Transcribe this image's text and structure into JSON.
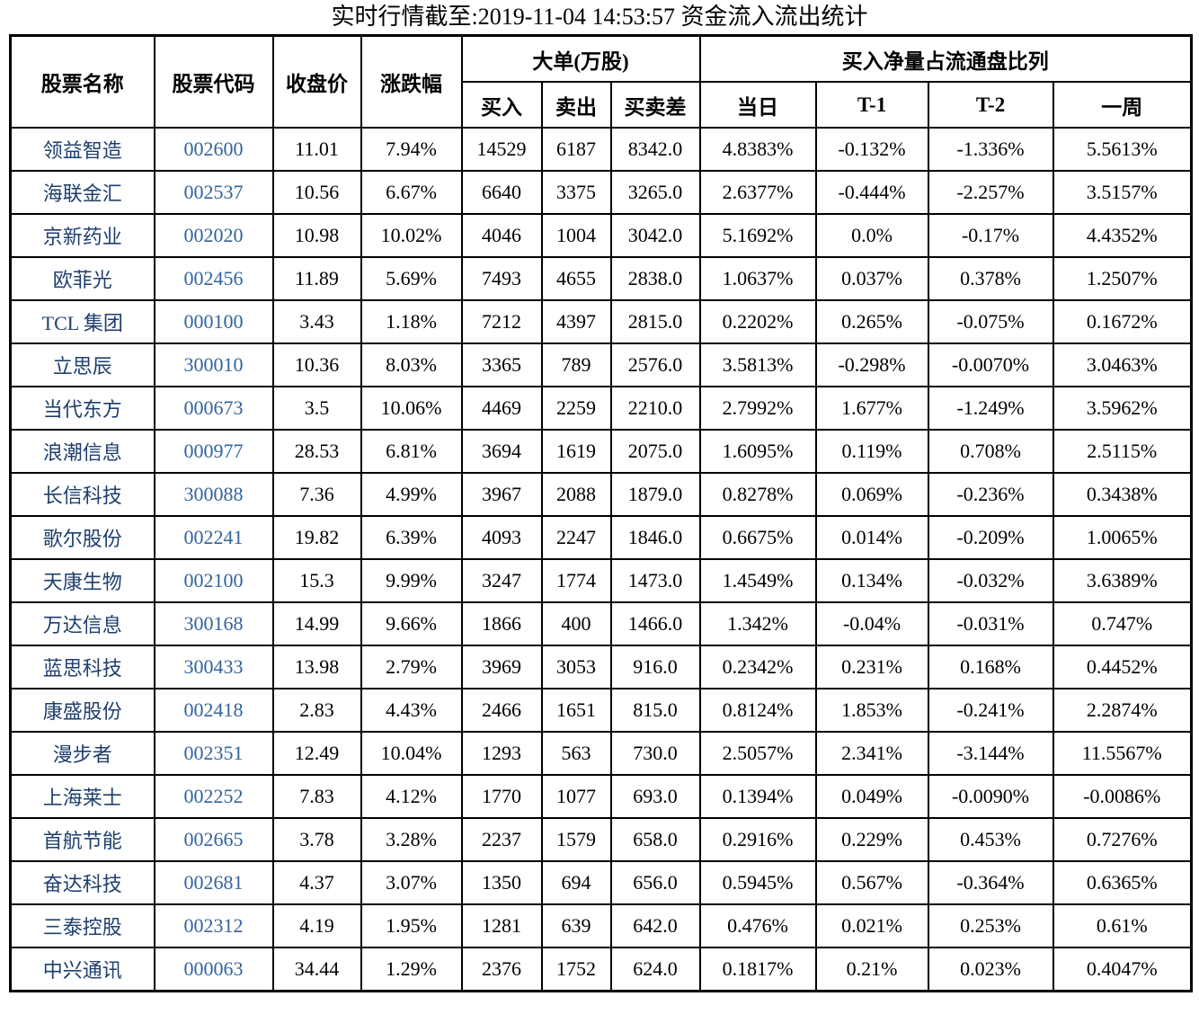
{
  "title": "实时行情截至:2019-11-04 14:53:57 资金流入流出统计",
  "colors": {
    "stock_name_text": "#1e3f6e",
    "stock_code_text": "#33639c",
    "border": "#000000",
    "data_text": "#000000",
    "background": "#ffffff"
  },
  "table": {
    "headers": {
      "stock_name": "股票名称",
      "stock_code": "股票代码",
      "close_price": "收盘价",
      "change_pct": "涨跌幅",
      "large_order_group": "大单(万股)",
      "buy": "买入",
      "sell": "卖出",
      "diff": "买卖差",
      "net_ratio_group": "买入净量占流通盘比列",
      "day": "当日",
      "t1": "T-1",
      "t2": "T-2",
      "week": "一周"
    },
    "rows": [
      {
        "name": "领益智造",
        "code": "002600",
        "close": "11.01",
        "change": "7.94%",
        "buy": "14529",
        "sell": "6187",
        "diff": "8342.0",
        "day": "4.8383%",
        "t1": "-0.132%",
        "t2": "-1.336%",
        "week": "5.5613%"
      },
      {
        "name": "海联金汇",
        "code": "002537",
        "close": "10.56",
        "change": "6.67%",
        "buy": "6640",
        "sell": "3375",
        "diff": "3265.0",
        "day": "2.6377%",
        "t1": "-0.444%",
        "t2": "-2.257%",
        "week": "3.5157%"
      },
      {
        "name": "京新药业",
        "code": "002020",
        "close": "10.98",
        "change": "10.02%",
        "buy": "4046",
        "sell": "1004",
        "diff": "3042.0",
        "day": "5.1692%",
        "t1": "0.0%",
        "t2": "-0.17%",
        "week": "4.4352%"
      },
      {
        "name": "欧菲光",
        "code": "002456",
        "close": "11.89",
        "change": "5.69%",
        "buy": "7493",
        "sell": "4655",
        "diff": "2838.0",
        "day": "1.0637%",
        "t1": "0.037%",
        "t2": "0.378%",
        "week": "1.2507%"
      },
      {
        "name": "TCL 集团",
        "code": "000100",
        "close": "3.43",
        "change": "1.18%",
        "buy": "7212",
        "sell": "4397",
        "diff": "2815.0",
        "day": "0.2202%",
        "t1": "0.265%",
        "t2": "-0.075%",
        "week": "0.1672%"
      },
      {
        "name": "立思辰",
        "code": "300010",
        "close": "10.36",
        "change": "8.03%",
        "buy": "3365",
        "sell": "789",
        "diff": "2576.0",
        "day": "3.5813%",
        "t1": "-0.298%",
        "t2": "-0.0070%",
        "week": "3.0463%"
      },
      {
        "name": "当代东方",
        "code": "000673",
        "close": "3.5",
        "change": "10.06%",
        "buy": "4469",
        "sell": "2259",
        "diff": "2210.0",
        "day": "2.7992%",
        "t1": "1.677%",
        "t2": "-1.249%",
        "week": "3.5962%"
      },
      {
        "name": "浪潮信息",
        "code": "000977",
        "close": "28.53",
        "change": "6.81%",
        "buy": "3694",
        "sell": "1619",
        "diff": "2075.0",
        "day": "1.6095%",
        "t1": "0.119%",
        "t2": "0.708%",
        "week": "2.5115%"
      },
      {
        "name": "长信科技",
        "code": "300088",
        "close": "7.36",
        "change": "4.99%",
        "buy": "3967",
        "sell": "2088",
        "diff": "1879.0",
        "day": "0.8278%",
        "t1": "0.069%",
        "t2": "-0.236%",
        "week": "0.3438%"
      },
      {
        "name": "歌尔股份",
        "code": "002241",
        "close": "19.82",
        "change": "6.39%",
        "buy": "4093",
        "sell": "2247",
        "diff": "1846.0",
        "day": "0.6675%",
        "t1": "0.014%",
        "t2": "-0.209%",
        "week": "1.0065%"
      },
      {
        "name": "天康生物",
        "code": "002100",
        "close": "15.3",
        "change": "9.99%",
        "buy": "3247",
        "sell": "1774",
        "diff": "1473.0",
        "day": "1.4549%",
        "t1": "0.134%",
        "t2": "-0.032%",
        "week": "3.6389%"
      },
      {
        "name": "万达信息",
        "code": "300168",
        "close": "14.99",
        "change": "9.66%",
        "buy": "1866",
        "sell": "400",
        "diff": "1466.0",
        "day": "1.342%",
        "t1": "-0.04%",
        "t2": "-0.031%",
        "week": "0.747%"
      },
      {
        "name": "蓝思科技",
        "code": "300433",
        "close": "13.98",
        "change": "2.79%",
        "buy": "3969",
        "sell": "3053",
        "diff": "916.0",
        "day": "0.2342%",
        "t1": "0.231%",
        "t2": "0.168%",
        "week": "0.4452%"
      },
      {
        "name": "康盛股份",
        "code": "002418",
        "close": "2.83",
        "change": "4.43%",
        "buy": "2466",
        "sell": "1651",
        "diff": "815.0",
        "day": "0.8124%",
        "t1": "1.853%",
        "t2": "-0.241%",
        "week": "2.2874%"
      },
      {
        "name": "漫步者",
        "code": "002351",
        "close": "12.49",
        "change": "10.04%",
        "buy": "1293",
        "sell": "563",
        "diff": "730.0",
        "day": "2.5057%",
        "t1": "2.341%",
        "t2": "-3.144%",
        "week": "11.5567%"
      },
      {
        "name": "上海莱士",
        "code": "002252",
        "close": "7.83",
        "change": "4.12%",
        "buy": "1770",
        "sell": "1077",
        "diff": "693.0",
        "day": "0.1394%",
        "t1": "0.049%",
        "t2": "-0.0090%",
        "week": "-0.0086%"
      },
      {
        "name": "首航节能",
        "code": "002665",
        "close": "3.78",
        "change": "3.28%",
        "buy": "2237",
        "sell": "1579",
        "diff": "658.0",
        "day": "0.2916%",
        "t1": "0.229%",
        "t2": "0.453%",
        "week": "0.7276%"
      },
      {
        "name": "奋达科技",
        "code": "002681",
        "close": "4.37",
        "change": "3.07%",
        "buy": "1350",
        "sell": "694",
        "diff": "656.0",
        "day": "0.5945%",
        "t1": "0.567%",
        "t2": "-0.364%",
        "week": "0.6365%"
      },
      {
        "name": "三泰控股",
        "code": "002312",
        "close": "4.19",
        "change": "1.95%",
        "buy": "1281",
        "sell": "639",
        "diff": "642.0",
        "day": "0.476%",
        "t1": "0.021%",
        "t2": "0.253%",
        "week": "0.61%"
      },
      {
        "name": "中兴通讯",
        "code": "000063",
        "close": "34.44",
        "change": "1.29%",
        "buy": "2376",
        "sell": "1752",
        "diff": "624.0",
        "day": "0.1817%",
        "t1": "0.21%",
        "t2": "0.023%",
        "week": "0.4047%"
      }
    ]
  }
}
